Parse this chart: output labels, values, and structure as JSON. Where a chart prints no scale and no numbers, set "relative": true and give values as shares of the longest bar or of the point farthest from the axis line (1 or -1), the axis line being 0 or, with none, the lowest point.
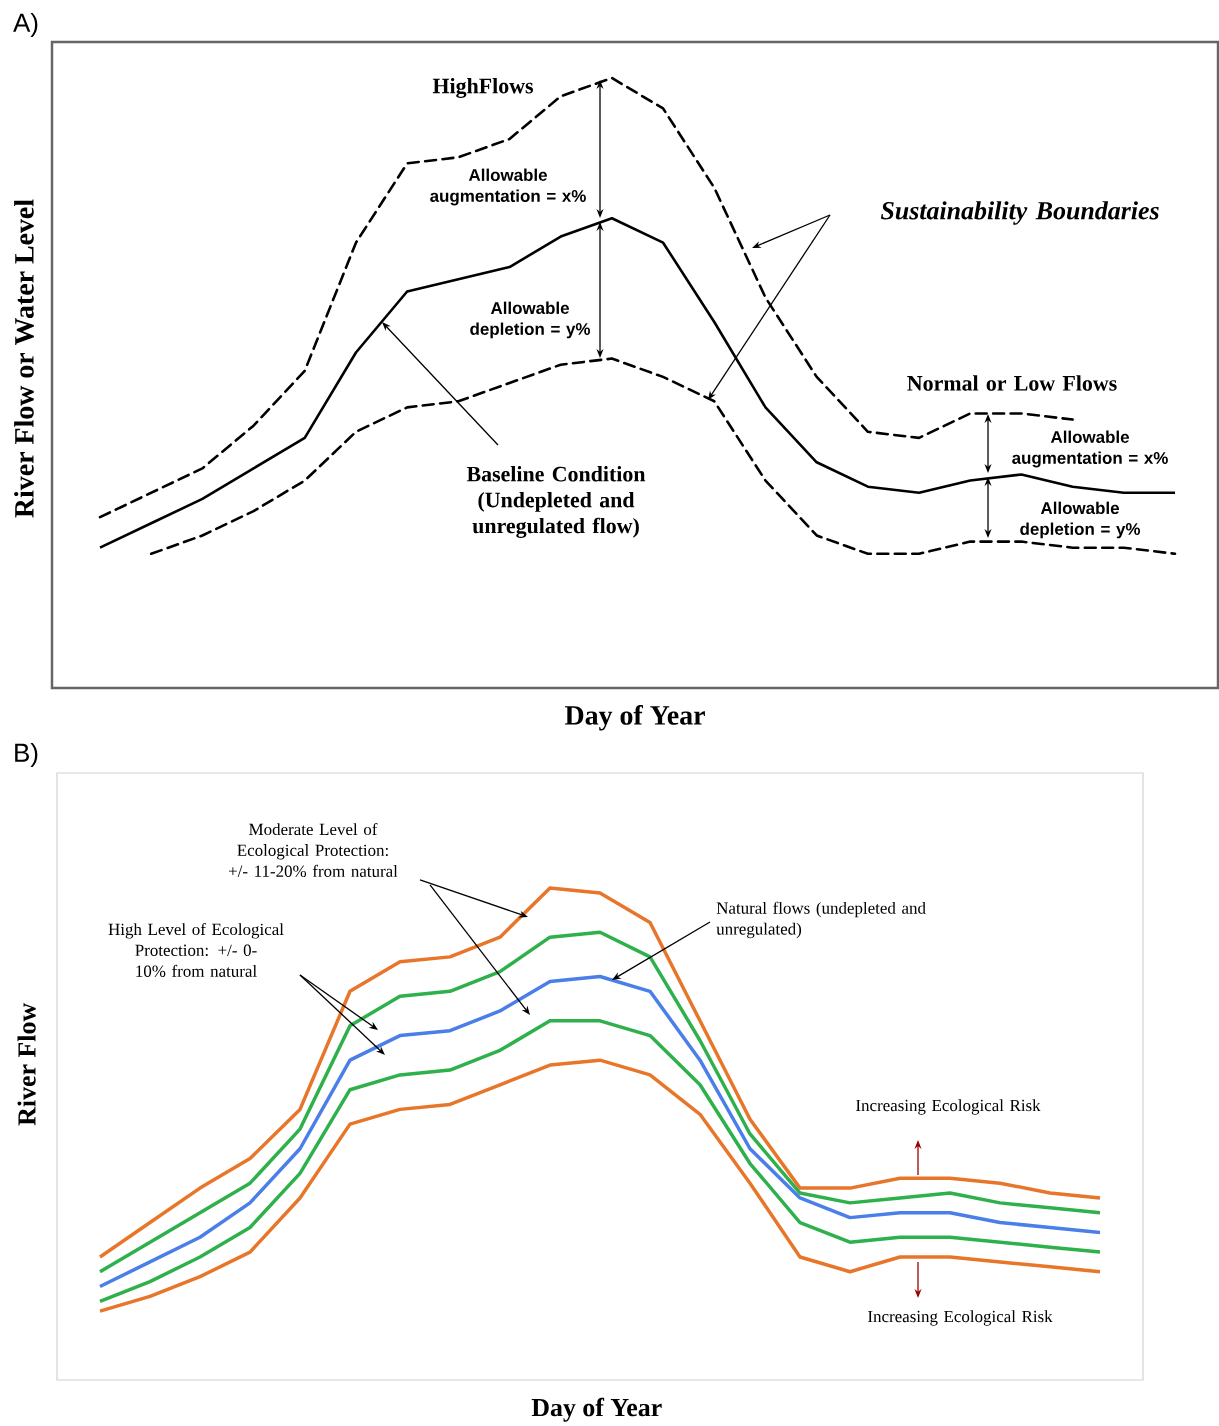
{
  "chart_data": [
    {
      "type": "line",
      "title": "A)",
      "xlabel": "Day of Year",
      "ylabel": "River Flow or Water Level",
      "relative": true,
      "categories": [
        null,
        null,
        null,
        null,
        null,
        null,
        null,
        null,
        null,
        null,
        null,
        null,
        null,
        null,
        null,
        null,
        null,
        null,
        null,
        null,
        null,
        null
      ],
      "series": [
        {
          "color": "#000000",
          "line_style": "dashed",
          "values": [
            0.28,
            0.32,
            0.36,
            0.43,
            0.52,
            0.73,
            0.86,
            0.87,
            0.9,
            0.97,
            1.0,
            0.95,
            0.82,
            0.64,
            0.51,
            0.42,
            0.41,
            0.45,
            0.45,
            0.44,
            null,
            null
          ]
        },
        {
          "color": "#000000",
          "line_style": "solid",
          "values": [
            0.23,
            0.27,
            0.31,
            0.36,
            0.41,
            0.55,
            0.65,
            0.67,
            0.69,
            0.74,
            0.77,
            0.73,
            0.6,
            0.46,
            0.37,
            0.33,
            0.32,
            0.34,
            0.35,
            0.33,
            0.32,
            0.32
          ]
        },
        {
          "color": "#000000",
          "line_style": "dashed",
          "values": [
            null,
            0.22,
            0.25,
            0.29,
            0.34,
            0.42,
            0.46,
            0.47,
            0.5,
            0.53,
            0.54,
            0.51,
            0.47,
            0.34,
            0.25,
            0.22,
            0.22,
            0.24,
            0.24,
            0.23,
            0.23,
            0.22
          ]
        }
      ],
      "annotations": [
        "HighFlows",
        "Allowable augmentation = x%",
        "Allowable depletion = y%",
        "Sustainability Boundaries",
        "Normal or Low Flows",
        "Allowable augmentation = x%",
        "Allowable depletion = y%",
        "Baseline Condition (Undepleted and unregulated flow)"
      ]
    },
    {
      "type": "line",
      "title": "B)",
      "xlabel": "Day of Year",
      "ylabel": "River Flow",
      "relative": true,
      "categories": [
        null,
        null,
        null,
        null,
        null,
        null,
        null,
        null,
        null,
        null,
        null,
        null,
        null,
        null,
        null,
        null,
        null,
        null,
        null,
        null,
        null
      ],
      "series": [
        {
          "color": "#e8762a",
          "values": [
            0.25,
            0.32,
            0.39,
            0.45,
            0.55,
            0.79,
            0.85,
            0.86,
            0.9,
            1.0,
            0.99,
            0.93,
            0.73,
            0.53,
            0.39,
            0.39,
            0.41,
            0.41,
            0.4,
            0.38,
            0.37
          ]
        },
        {
          "color": "#2eb04b",
          "values": [
            0.22,
            0.28,
            0.34,
            0.4,
            0.51,
            0.72,
            0.78,
            0.79,
            0.83,
            0.9,
            0.91,
            0.86,
            0.69,
            0.5,
            0.38,
            0.36,
            0.37,
            0.38,
            0.36,
            0.35,
            0.34
          ]
        },
        {
          "color": "#4a7ee8",
          "values": [
            0.19,
            0.24,
            0.29,
            0.36,
            0.47,
            0.65,
            0.7,
            0.71,
            0.75,
            0.81,
            0.82,
            0.79,
            0.65,
            0.47,
            0.37,
            0.33,
            0.34,
            0.34,
            0.32,
            0.31,
            0.3
          ]
        },
        {
          "color": "#2eb04b",
          "values": [
            0.16,
            0.2,
            0.25,
            0.31,
            0.42,
            0.59,
            0.62,
            0.63,
            0.67,
            0.73,
            0.73,
            0.7,
            0.6,
            0.44,
            0.32,
            0.28,
            0.29,
            0.29,
            0.28,
            0.27,
            0.26
          ]
        },
        {
          "color": "#e8762a",
          "values": [
            0.14,
            0.17,
            0.21,
            0.26,
            0.37,
            0.52,
            0.55,
            0.56,
            0.6,
            0.64,
            0.65,
            0.62,
            0.54,
            0.4,
            0.25,
            0.22,
            0.25,
            0.25,
            0.24,
            0.23,
            0.22
          ]
        }
      ],
      "annotations": [
        "Moderate Level of Ecological Protection: +/- 11-20% from natural",
        "High Level of Ecological Protection: +/- 0-10% from natural",
        "Natural flows (undepleted and unregulated)",
        "Increasing Ecological Risk",
        "Increasing Ecological Risk"
      ]
    }
  ]
}
